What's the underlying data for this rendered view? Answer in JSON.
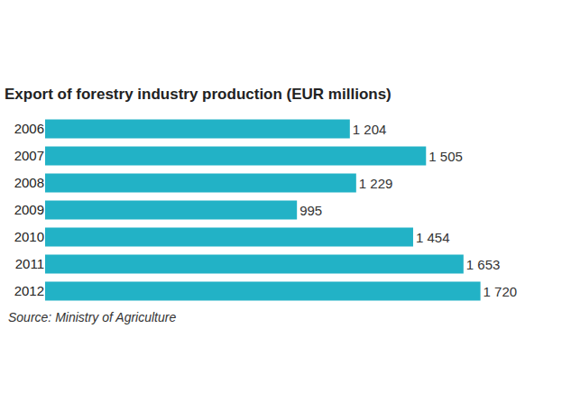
{
  "chart_data": {
    "type": "bar",
    "orientation": "horizontal",
    "title": "Export of forestry industry production (EUR millions)",
    "annotations": [
      "Source: Ministry of Agriculture"
    ],
    "categories": [
      "2006",
      "2007",
      "2008",
      "2009",
      "2010",
      "2011",
      "2012"
    ],
    "values": [
      1204,
      1505,
      1229,
      995,
      1454,
      1653,
      1720
    ],
    "value_labels": [
      "1 204",
      "1 505",
      "1 229",
      "995",
      "1 454",
      "1 653",
      "1 720"
    ],
    "color": "#22b2c6",
    "data_labels": true,
    "tick_labels": "y",
    "grid": false
  }
}
